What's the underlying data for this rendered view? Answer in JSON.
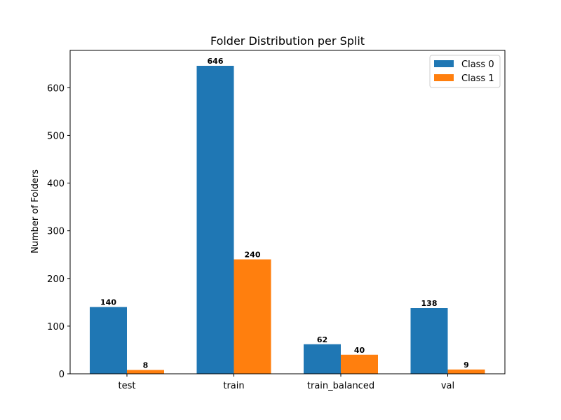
{
  "chart_data": {
    "type": "bar",
    "title": "Folder Distribution per Split",
    "xlabel": "",
    "ylabel": "Number of Folders",
    "categories": [
      "test",
      "train",
      "train_balanced",
      "val"
    ],
    "series": [
      {
        "name": "Class 0",
        "values": [
          140,
          646,
          62,
          138
        ],
        "color": "#1f77b4"
      },
      {
        "name": "Class 1",
        "values": [
          8,
          240,
          40,
          9
        ],
        "color": "#ff7f0e"
      }
    ],
    "ylim": [
      0,
      678.3
    ],
    "yticks": [
      0,
      100,
      200,
      300,
      400,
      500,
      600
    ],
    "grid": false,
    "legend_position": "top-right"
  }
}
